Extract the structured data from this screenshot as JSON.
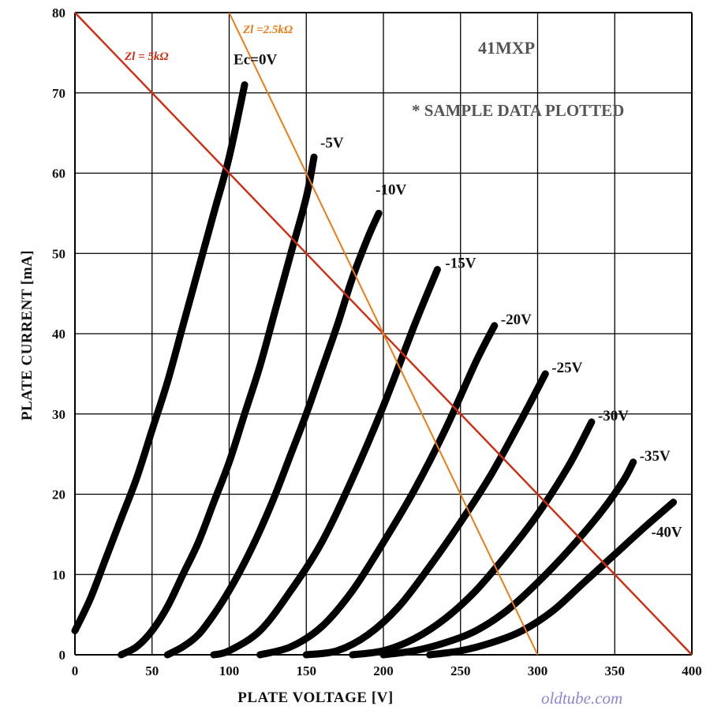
{
  "chart_data": {
    "type": "line",
    "title": "41MXP",
    "subtitle": "* SAMPLE DATA PLOTTED",
    "xlabel": "PLATE VOLTAGE  [V]",
    "ylabel": "PLATE CURRENT  [mA]",
    "xlim": [
      0,
      400
    ],
    "ylim": [
      0,
      80
    ],
    "xticks": [
      0,
      50,
      100,
      150,
      200,
      250,
      300,
      350,
      400
    ],
    "yticks": [
      0,
      10,
      20,
      30,
      40,
      50,
      60,
      70,
      80
    ],
    "grid": true,
    "series": [
      {
        "name": "Ec=0V",
        "x": [
          0,
          10,
          20,
          30,
          40,
          50,
          60,
          70,
          80,
          90,
          100,
          110
        ],
        "y": [
          3,
          7,
          12,
          17,
          22,
          28,
          34,
          41,
          48,
          55,
          62,
          71
        ]
      },
      {
        "name": "-5V",
        "x": [
          30,
          40,
          50,
          60,
          70,
          80,
          90,
          100,
          110,
          120,
          130,
          140,
          150,
          155
        ],
        "y": [
          0,
          1,
          3,
          6,
          10,
          14,
          19,
          24,
          30,
          36,
          43,
          50,
          57,
          62
        ]
      },
      {
        "name": "-10V",
        "x": [
          60,
          70,
          80,
          90,
          100,
          110,
          120,
          130,
          140,
          150,
          160,
          170,
          180,
          190,
          197
        ],
        "y": [
          0,
          1,
          2.5,
          5,
          8,
          11.5,
          15.5,
          20,
          25,
          30,
          35.5,
          41,
          47,
          52,
          55
        ]
      },
      {
        "name": "-15V",
        "x": [
          90,
          100,
          120,
          140,
          160,
          180,
          200,
          220,
          235
        ],
        "y": [
          0,
          0.5,
          3,
          8,
          14,
          22,
          31,
          41,
          48
        ]
      },
      {
        "name": "-20V",
        "x": [
          120,
          140,
          160,
          180,
          200,
          220,
          240,
          260,
          272
        ],
        "y": [
          0,
          1,
          3.5,
          8,
          14,
          20.5,
          28,
          36.5,
          41
        ]
      },
      {
        "name": "-25V",
        "x": [
          150,
          170,
          190,
          210,
          230,
          250,
          270,
          290,
          305
        ],
        "y": [
          0,
          0.5,
          2.5,
          6,
          11,
          16.5,
          22.5,
          29.5,
          35
        ]
      },
      {
        "name": "-30V",
        "x": [
          180,
          200,
          220,
          240,
          260,
          280,
          300,
          320,
          335
        ],
        "y": [
          0,
          0.5,
          2,
          4.5,
          8,
          12.5,
          17.5,
          23.5,
          29
        ]
      },
      {
        "name": "-35V",
        "x": [
          200,
          220,
          240,
          260,
          280,
          300,
          320,
          340,
          355,
          362
        ],
        "y": [
          0,
          0.5,
          1.5,
          3,
          5.5,
          9,
          13,
          17.5,
          21.5,
          24
        ]
      },
      {
        "name": "-40V",
        "x": [
          230,
          250,
          270,
          290,
          310,
          330,
          350,
          370,
          388
        ],
        "y": [
          0,
          0.5,
          1.5,
          3,
          5.5,
          9,
          12.5,
          16,
          19
        ]
      }
    ],
    "load_lines": [
      {
        "name": "Zl = 5kΩ",
        "color": "#d42a10",
        "x": [
          0,
          400
        ],
        "y": [
          80,
          0
        ]
      },
      {
        "name": "Zl =2.5kΩ",
        "color": "#f07a14",
        "x": [
          100,
          300
        ],
        "y": [
          80,
          0
        ]
      }
    ],
    "watermark": "oldtube.com"
  }
}
